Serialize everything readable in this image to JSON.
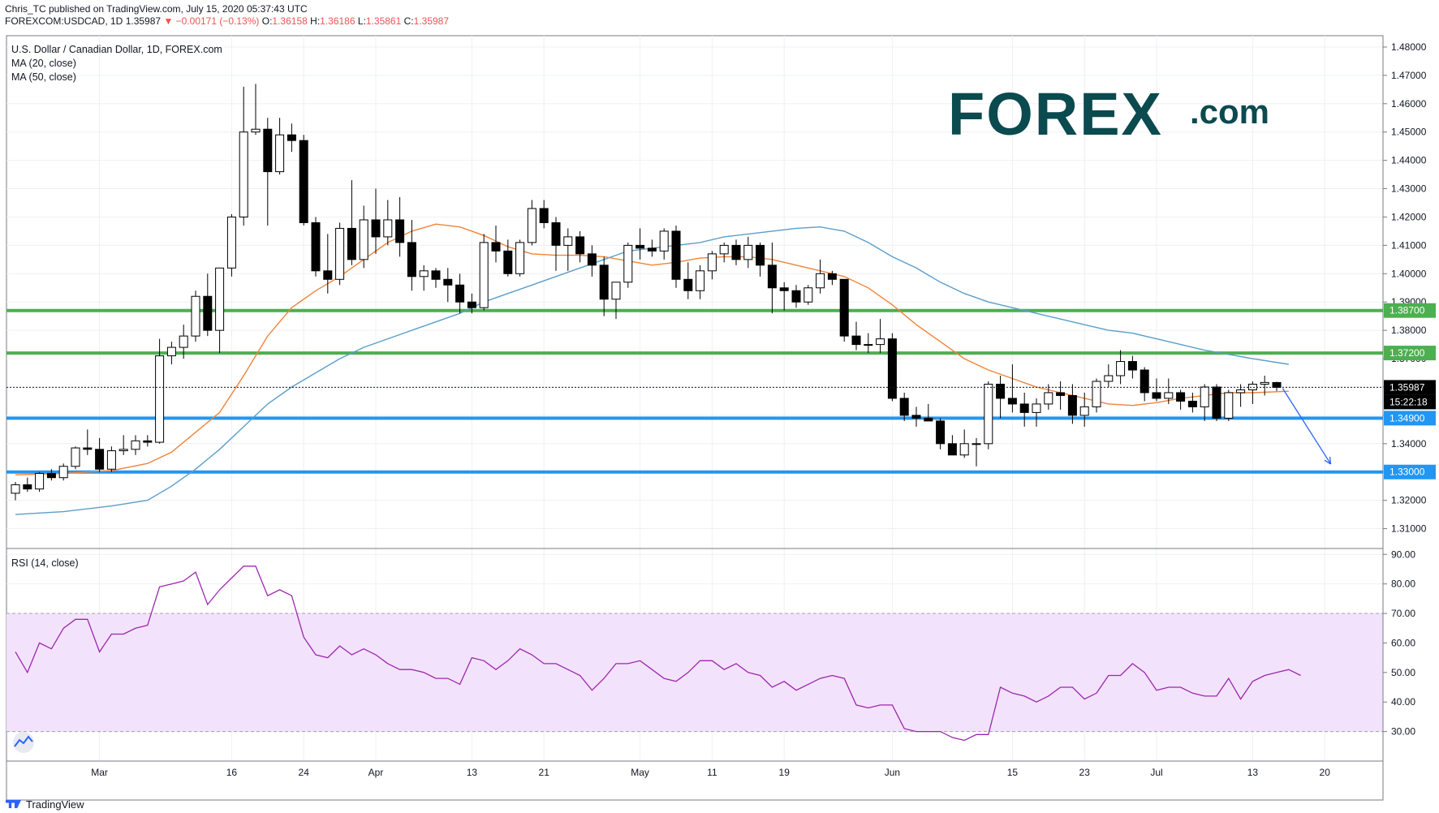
{
  "header": {
    "publisher": "Chris_TC published on TradingView.com, July 15, 2020 05:37:43 UTC",
    "symbol": "FOREXCOM:USDCAD, 1D",
    "last": "1.35987",
    "change": "▼ −0.00171 (−0.13%)",
    "o_label": "O:",
    "o": "1.36158",
    "h_label": "H:",
    "h": "1.36186",
    "l_label": "L:",
    "l": "1.35861",
    "c_label": "C:",
    "c": "1.35987"
  },
  "legend": {
    "title": "U.S. Dollar / Canadian Dollar, 1D, FOREX.com",
    "ma20": "MA (20, close)",
    "ma50": "MA (50, close)",
    "rsi": "RSI (14, close)"
  },
  "logo": {
    "brand": "FOREX",
    "suffix": ".com",
    "color": "#0b4a4f",
    "accent": "#1fa34a"
  },
  "footer": {
    "brand": "TradingView"
  },
  "colors": {
    "up": "#ffffff",
    "down": "#000000",
    "ma20": "#f0833a",
    "ma50": "#5b9ec9",
    "green_level": "#4caf50",
    "blue_level": "#2196f3",
    "rsi": "#9c27b0",
    "rsi_band": "#f3e2fb"
  },
  "chart_data": [
    {
      "type": "candlestick",
      "title": "U.S. Dollar / Canadian Dollar, 1D, FOREX.com",
      "ylim": [
        1.303,
        1.484
      ],
      "y_ticks": [
        "1.48000",
        "1.47000",
        "1.46000",
        "1.45000",
        "1.44000",
        "1.43000",
        "1.42000",
        "1.41000",
        "1.40000",
        "1.39000",
        "1.38000",
        "1.37000",
        "1.36000",
        "1.35000",
        "1.34000",
        "1.33000",
        "1.32000",
        "1.31000"
      ],
      "x_tick_labels": [
        {
          "index": 7,
          "label": "Mar"
        },
        {
          "index": 18,
          "label": "16"
        },
        {
          "index": 24,
          "label": "24"
        },
        {
          "index": 30,
          "label": "Apr"
        },
        {
          "index": 38,
          "label": "13"
        },
        {
          "index": 44,
          "label": "21"
        },
        {
          "index": 52,
          "label": "May"
        },
        {
          "index": 58,
          "label": "11"
        },
        {
          "index": 64,
          "label": "19"
        },
        {
          "index": 73,
          "label": "Jun"
        },
        {
          "index": 83,
          "label": "15"
        },
        {
          "index": 89,
          "label": "23"
        },
        {
          "index": 95,
          "label": "Jul"
        },
        {
          "index": 103,
          "label": "13"
        },
        {
          "index": 109,
          "label": "20"
        }
      ],
      "levels": [
        {
          "value": 1.387,
          "label": "1.38700",
          "color": "#4caf50"
        },
        {
          "value": 1.372,
          "label": "1.37200",
          "color": "#4caf50"
        },
        {
          "value": 1.349,
          "label": "1.34900",
          "color": "#2196f3"
        },
        {
          "value": 1.33,
          "label": "1.33000",
          "color": "#2196f3"
        }
      ],
      "last_price": {
        "value": 1.35987,
        "label": "1.35987",
        "countdown": "15:22:18"
      },
      "projection": {
        "from": [
          105.5,
          1.3595
        ],
        "to": [
          109.5,
          1.3328
        ]
      },
      "candles": [
        [
          1.3225,
          1.3265,
          1.32,
          1.3255
        ],
        [
          1.3255,
          1.328,
          1.323,
          1.324
        ],
        [
          1.324,
          1.33,
          1.323,
          1.3295
        ],
        [
          1.3295,
          1.331,
          1.327,
          1.328
        ],
        [
          1.328,
          1.333,
          1.327,
          1.332
        ],
        [
          1.332,
          1.339,
          1.331,
          1.3385
        ],
        [
          1.3385,
          1.345,
          1.336,
          1.338
        ],
        [
          1.338,
          1.342,
          1.33,
          1.331
        ],
        [
          1.331,
          1.339,
          1.33,
          1.3375
        ],
        [
          1.3375,
          1.343,
          1.336,
          1.338
        ],
        [
          1.338,
          1.343,
          1.336,
          1.341
        ],
        [
          1.341,
          1.343,
          1.339,
          1.3405
        ],
        [
          1.3405,
          1.377,
          1.34,
          1.371
        ],
        [
          1.371,
          1.376,
          1.368,
          1.374
        ],
        [
          1.374,
          1.382,
          1.37,
          1.378
        ],
        [
          1.378,
          1.394,
          1.376,
          1.392
        ],
        [
          1.392,
          1.4,
          1.378,
          1.38
        ],
        [
          1.38,
          1.402,
          1.372,
          1.402
        ],
        [
          1.402,
          1.421,
          1.399,
          1.42
        ],
        [
          1.42,
          1.466,
          1.417,
          1.45
        ],
        [
          1.45,
          1.467,
          1.449,
          1.451
        ],
        [
          1.451,
          1.455,
          1.417,
          1.436
        ],
        [
          1.436,
          1.455,
          1.435,
          1.449
        ],
        [
          1.449,
          1.453,
          1.443,
          1.447
        ],
        [
          1.447,
          1.449,
          1.417,
          1.418
        ],
        [
          1.418,
          1.42,
          1.399,
          1.401
        ],
        [
          1.401,
          1.414,
          1.393,
          1.398
        ],
        [
          1.398,
          1.418,
          1.396,
          1.416
        ],
        [
          1.416,
          1.433,
          1.403,
          1.405
        ],
        [
          1.405,
          1.424,
          1.402,
          1.419
        ],
        [
          1.419,
          1.43,
          1.407,
          1.413
        ],
        [
          1.413,
          1.426,
          1.41,
          1.419
        ],
        [
          1.419,
          1.427,
          1.406,
          1.411
        ],
        [
          1.411,
          1.419,
          1.394,
          1.399
        ],
        [
          1.399,
          1.403,
          1.394,
          1.401
        ],
        [
          1.401,
          1.402,
          1.395,
          1.398
        ],
        [
          1.398,
          1.402,
          1.39,
          1.396
        ],
        [
          1.396,
          1.4,
          1.386,
          1.39
        ],
        [
          1.39,
          1.393,
          1.386,
          1.388
        ],
        [
          1.388,
          1.414,
          1.387,
          1.411
        ],
        [
          1.411,
          1.417,
          1.404,
          1.408
        ],
        [
          1.408,
          1.412,
          1.399,
          1.4
        ],
        [
          1.4,
          1.412,
          1.399,
          1.411
        ],
        [
          1.411,
          1.426,
          1.41,
          1.423
        ],
        [
          1.423,
          1.426,
          1.416,
          1.418
        ],
        [
          1.418,
          1.42,
          1.401,
          1.41
        ],
        [
          1.41,
          1.416,
          1.401,
          1.413
        ],
        [
          1.413,
          1.415,
          1.404,
          1.407
        ],
        [
          1.407,
          1.41,
          1.399,
          1.403
        ],
        [
          1.403,
          1.406,
          1.385,
          1.391
        ],
        [
          1.391,
          1.397,
          1.384,
          1.397
        ],
        [
          1.397,
          1.411,
          1.395,
          1.41
        ],
        [
          1.41,
          1.416,
          1.405,
          1.409
        ],
        [
          1.409,
          1.412,
          1.406,
          1.408
        ],
        [
          1.408,
          1.416,
          1.405,
          1.415
        ],
        [
          1.415,
          1.417,
          1.395,
          1.398
        ],
        [
          1.398,
          1.404,
          1.391,
          1.394
        ],
        [
          1.394,
          1.403,
          1.391,
          1.401
        ],
        [
          1.401,
          1.408,
          1.398,
          1.407
        ],
        [
          1.407,
          1.411,
          1.404,
          1.41
        ],
        [
          1.41,
          1.412,
          1.403,
          1.405
        ],
        [
          1.405,
          1.413,
          1.402,
          1.41
        ],
        [
          1.41,
          1.411,
          1.399,
          1.403
        ],
        [
          1.403,
          1.411,
          1.386,
          1.395
        ],
        [
          1.395,
          1.397,
          1.387,
          1.394
        ],
        [
          1.394,
          1.396,
          1.388,
          1.39
        ],
        [
          1.39,
          1.396,
          1.389,
          1.395
        ],
        [
          1.395,
          1.405,
          1.393,
          1.4
        ],
        [
          1.4,
          1.401,
          1.396,
          1.398
        ],
        [
          1.398,
          1.398,
          1.376,
          1.378
        ],
        [
          1.378,
          1.383,
          1.373,
          1.375
        ],
        [
          1.375,
          1.379,
          1.372,
          1.375
        ],
        [
          1.375,
          1.384,
          1.372,
          1.377
        ],
        [
          1.377,
          1.379,
          1.355,
          1.356
        ],
        [
          1.356,
          1.358,
          1.348,
          1.35
        ],
        [
          1.35,
          1.353,
          1.346,
          1.349
        ],
        [
          1.349,
          1.354,
          1.348,
          1.348
        ],
        [
          1.348,
          1.349,
          1.338,
          1.34
        ],
        [
          1.34,
          1.343,
          1.336,
          1.336
        ],
        [
          1.336,
          1.345,
          1.335,
          1.34
        ],
        [
          1.34,
          1.342,
          1.332,
          1.34
        ],
        [
          1.34,
          1.362,
          1.338,
          1.361
        ],
        [
          1.361,
          1.364,
          1.349,
          1.356
        ],
        [
          1.356,
          1.368,
          1.351,
          1.354
        ],
        [
          1.354,
          1.358,
          1.346,
          1.351
        ],
        [
          1.351,
          1.356,
          1.346,
          1.354
        ],
        [
          1.354,
          1.361,
          1.352,
          1.358
        ],
        [
          1.358,
          1.362,
          1.352,
          1.357
        ],
        [
          1.357,
          1.361,
          1.347,
          1.35
        ],
        [
          1.35,
          1.358,
          1.346,
          1.353
        ],
        [
          1.353,
          1.363,
          1.351,
          1.362
        ],
        [
          1.362,
          1.368,
          1.36,
          1.364
        ],
        [
          1.364,
          1.373,
          1.361,
          1.369
        ],
        [
          1.369,
          1.371,
          1.363,
          1.366
        ],
        [
          1.366,
          1.367,
          1.355,
          1.358
        ],
        [
          1.358,
          1.363,
          1.355,
          1.356
        ],
        [
          1.356,
          1.363,
          1.354,
          1.358
        ],
        [
          1.358,
          1.359,
          1.352,
          1.355
        ],
        [
          1.355,
          1.358,
          1.351,
          1.353
        ],
        [
          1.353,
          1.361,
          1.348,
          1.36
        ],
        [
          1.36,
          1.361,
          1.348,
          1.349
        ],
        [
          1.349,
          1.359,
          1.348,
          1.358
        ],
        [
          1.358,
          1.361,
          1.353,
          1.359
        ],
        [
          1.359,
          1.362,
          1.354,
          1.361
        ],
        [
          1.361,
          1.364,
          1.357,
          1.3616
        ],
        [
          1.36158,
          1.36186,
          1.35861,
          1.35987
        ]
      ],
      "ma20": [
        [
          0,
          1.329
        ],
        [
          4,
          1.3295
        ],
        [
          8,
          1.3305
        ],
        [
          11,
          1.333
        ],
        [
          13,
          1.337
        ],
        [
          15,
          1.344
        ],
        [
          17,
          1.351
        ],
        [
          19,
          1.364
        ],
        [
          21,
          1.378
        ],
        [
          23,
          1.388
        ],
        [
          25,
          1.394
        ],
        [
          27,
          1.399
        ],
        [
          29,
          1.405
        ],
        [
          31,
          1.411
        ],
        [
          33,
          1.415
        ],
        [
          35,
          1.4175
        ],
        [
          37,
          1.4165
        ],
        [
          39,
          1.4135
        ],
        [
          41,
          1.4095
        ],
        [
          43,
          1.407
        ],
        [
          45,
          1.4065
        ],
        [
          47,
          1.4065
        ],
        [
          49,
          1.406
        ],
        [
          51,
          1.4045
        ],
        [
          53,
          1.403
        ],
        [
          55,
          1.404
        ],
        [
          57,
          1.4055
        ],
        [
          59,
          1.406
        ],
        [
          61,
          1.406
        ],
        [
          63,
          1.405
        ],
        [
          65,
          1.403
        ],
        [
          67,
          1.401
        ],
        [
          69,
          1.399
        ],
        [
          71,
          1.395
        ],
        [
          73,
          1.389
        ],
        [
          75,
          1.382
        ],
        [
          77,
          1.376
        ],
        [
          79,
          1.37
        ],
        [
          81,
          1.366
        ],
        [
          83,
          1.363
        ],
        [
          85,
          1.36
        ],
        [
          87,
          1.358
        ],
        [
          89,
          1.356
        ],
        [
          91,
          1.354
        ],
        [
          93,
          1.3535
        ],
        [
          95,
          1.3545
        ],
        [
          97,
          1.356
        ],
        [
          99,
          1.357
        ],
        [
          101,
          1.358
        ],
        [
          103,
          1.358
        ],
        [
          106,
          1.3585
        ]
      ],
      "ma50": [
        [
          0,
          1.315
        ],
        [
          4,
          1.316
        ],
        [
          8,
          1.318
        ],
        [
          11,
          1.32
        ],
        [
          13,
          1.325
        ],
        [
          15,
          1.331
        ],
        [
          17,
          1.338
        ],
        [
          19,
          1.346
        ],
        [
          21,
          1.354
        ],
        [
          23,
          1.36
        ],
        [
          25,
          1.365
        ],
        [
          27,
          1.37
        ],
        [
          29,
          1.374
        ],
        [
          31,
          1.377
        ],
        [
          33,
          1.38
        ],
        [
          35,
          1.383
        ],
        [
          37,
          1.386
        ],
        [
          39,
          1.39
        ],
        [
          41,
          1.393
        ],
        [
          43,
          1.396
        ],
        [
          45,
          1.399
        ],
        [
          47,
          1.402
        ],
        [
          49,
          1.405
        ],
        [
          51,
          1.408
        ],
        [
          53,
          1.409
        ],
        [
          55,
          1.41
        ],
        [
          57,
          1.411
        ],
        [
          59,
          1.413
        ],
        [
          61,
          1.414
        ],
        [
          63,
          1.415
        ],
        [
          65,
          1.416
        ],
        [
          67,
          1.4165
        ],
        [
          69,
          1.415
        ],
        [
          71,
          1.411
        ],
        [
          73,
          1.406
        ],
        [
          75,
          1.402
        ],
        [
          77,
          1.397
        ],
        [
          79,
          1.393
        ],
        [
          81,
          1.39
        ],
        [
          83,
          1.388
        ],
        [
          85,
          1.386
        ],
        [
          87,
          1.384
        ],
        [
          89,
          1.382
        ],
        [
          91,
          1.38
        ],
        [
          93,
          1.379
        ],
        [
          95,
          1.377
        ],
        [
          97,
          1.375
        ],
        [
          99,
          1.373
        ],
        [
          101,
          1.3715
        ],
        [
          103,
          1.37
        ],
        [
          106,
          1.368
        ]
      ]
    },
    {
      "type": "line",
      "title": "RSI (14, close)",
      "ylim": [
        20,
        92
      ],
      "y_ticks": [
        "90.00",
        "80.00",
        "70.00",
        "60.00",
        "50.00",
        "40.00",
        "30.00"
      ],
      "band": [
        30,
        70
      ],
      "values": [
        57,
        50,
        60,
        58,
        65,
        68,
        68,
        57,
        63,
        63,
        65,
        66,
        79,
        80,
        81,
        84,
        73,
        78,
        82,
        86,
        86,
        76,
        78,
        76,
        62,
        56,
        55,
        59,
        56,
        58,
        56,
        53,
        51,
        51,
        50,
        48,
        48,
        46,
        55,
        54,
        51,
        54,
        58,
        56,
        53,
        53,
        51,
        49,
        44,
        48,
        53,
        53,
        54,
        51,
        48,
        47,
        50,
        54,
        54,
        51,
        53,
        50,
        49,
        45,
        47,
        44,
        46,
        48,
        49,
        48,
        39,
        38,
        39,
        39,
        31,
        30,
        30,
        30,
        28,
        27,
        29,
        29,
        45,
        43,
        42,
        40,
        42,
        45,
        45,
        41,
        43,
        49,
        49,
        53,
        50,
        44,
        45,
        45,
        43,
        42,
        42,
        48,
        41,
        47,
        49,
        50,
        51,
        49
      ]
    }
  ]
}
